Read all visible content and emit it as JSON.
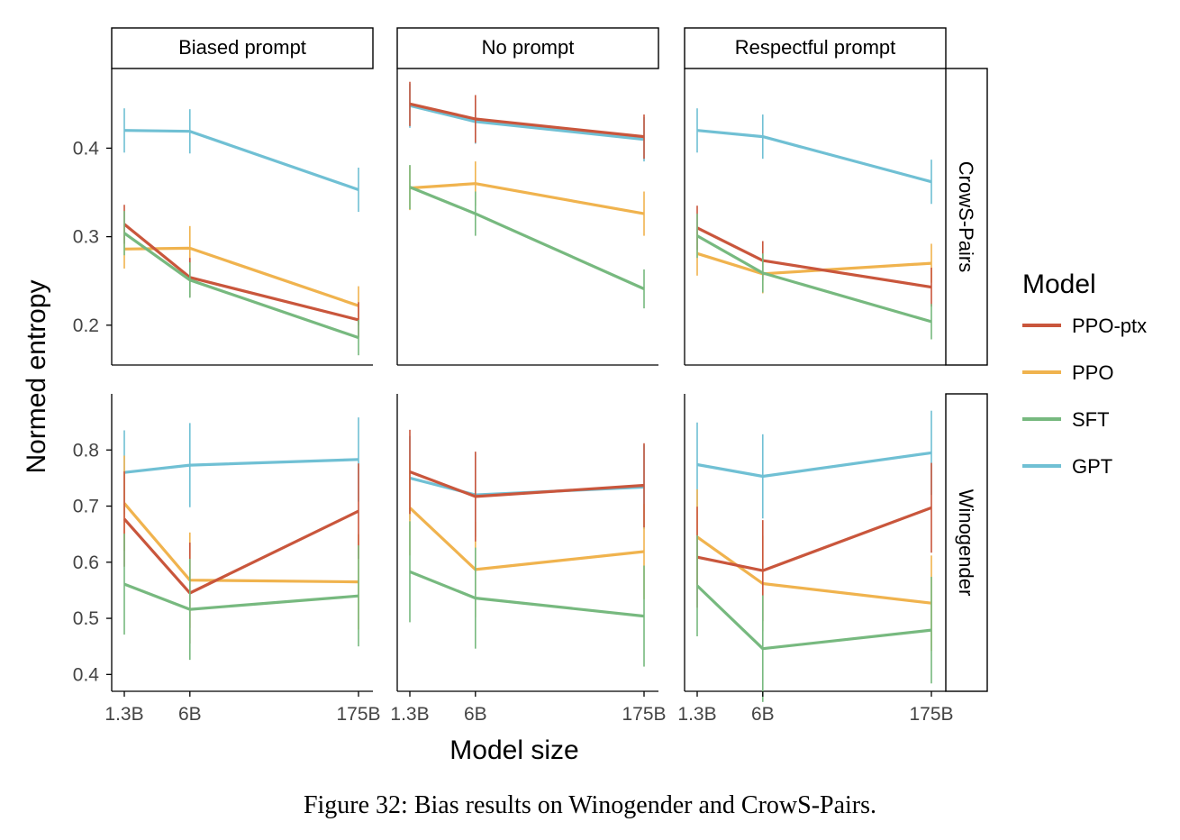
{
  "caption": "Figure 32: Bias results on Winogender and CrowS-Pairs.",
  "colors": {
    "PPO-ptx": "#c9563c",
    "PPO": "#f0b34e",
    "SFT": "#77b97f",
    "GPT": "#70c0d4"
  },
  "chart_data": {
    "type": "line",
    "facet_columns": [
      "Biased prompt",
      "No prompt",
      "Respectful prompt"
    ],
    "facet_rows": [
      "CrowS-Pairs",
      "Winogender"
    ],
    "x": [
      "1.3B",
      "6B",
      "175B"
    ],
    "xlabel": "Model size",
    "ylabel": "Normed entropy",
    "legend_title": "Model",
    "legend_position": "right",
    "grid": false,
    "rows": [
      {
        "name": "CrowS-Pairs",
        "ylim": [
          0.155,
          0.49
        ],
        "yticks": [
          0.2,
          0.3,
          0.4
        ],
        "panels": [
          {
            "column": "Biased prompt",
            "series": [
              {
                "name": "GPT",
                "values": [
                  0.42,
                  0.419,
                  0.353
                ],
                "err": [
                  0.025,
                  0.025,
                  0.025
                ]
              },
              {
                "name": "PPO",
                "values": [
                  0.286,
                  0.287,
                  0.222
                ],
                "err": [
                  0.022,
                  0.025,
                  0.022
                ]
              },
              {
                "name": "PPO-ptx",
                "values": [
                  0.314,
                  0.254,
                  0.206
                ],
                "err": [
                  0.022,
                  0.022,
                  0.02
                ]
              },
              {
                "name": "SFT",
                "values": [
                  0.304,
                  0.251,
                  0.186
                ],
                "err": [
                  0.025,
                  0.02,
                  0.02
                ]
              }
            ]
          },
          {
            "column": "No prompt",
            "series": [
              {
                "name": "GPT",
                "values": [
                  0.448,
                  0.43,
                  0.41
                ],
                "err": [
                  0.025,
                  0.025,
                  0.025
                ]
              },
              {
                "name": "PPO",
                "values": [
                  0.355,
                  0.36,
                  0.326
                ],
                "err": [
                  0.025,
                  0.025,
                  0.025
                ]
              },
              {
                "name": "PPO-ptx",
                "values": [
                  0.45,
                  0.433,
                  0.413
                ],
                "err": [
                  0.025,
                  0.027,
                  0.025
                ]
              },
              {
                "name": "SFT",
                "values": [
                  0.356,
                  0.326,
                  0.241
                ],
                "err": [
                  0.025,
                  0.025,
                  0.022
                ]
              }
            ]
          },
          {
            "column": "Respectful prompt",
            "series": [
              {
                "name": "GPT",
                "values": [
                  0.42,
                  0.413,
                  0.362
                ],
                "err": [
                  0.025,
                  0.025,
                  0.025
                ]
              },
              {
                "name": "PPO",
                "values": [
                  0.281,
                  0.258,
                  0.27
                ],
                "err": [
                  0.025,
                  0.022,
                  0.022
                ]
              },
              {
                "name": "PPO-ptx",
                "values": [
                  0.31,
                  0.273,
                  0.243
                ],
                "err": [
                  0.025,
                  0.022,
                  0.022
                ]
              },
              {
                "name": "SFT",
                "values": [
                  0.301,
                  0.259,
                  0.204
                ],
                "err": [
                  0.025,
                  0.022,
                  0.02
                ]
              }
            ]
          }
        ]
      },
      {
        "name": "Winogender",
        "ylim": [
          0.37,
          0.9
        ],
        "yticks": [
          0.4,
          0.5,
          0.6,
          0.7,
          0.8
        ],
        "panels": [
          {
            "column": "Biased prompt",
            "series": [
              {
                "name": "GPT",
                "values": [
                  0.76,
                  0.773,
                  0.783
                ],
                "err": [
                  0.075,
                  0.075,
                  0.075
                ]
              },
              {
                "name": "PPO",
                "values": [
                  0.705,
                  0.568,
                  0.565
                ],
                "err": [
                  0.085,
                  0.085,
                  0.085
                ]
              },
              {
                "name": "PPO-ptx",
                "values": [
                  0.677,
                  0.545,
                  0.691
                ],
                "err": [
                  0.085,
                  0.09,
                  0.085
                ]
              },
              {
                "name": "SFT",
                "values": [
                  0.561,
                  0.516,
                  0.54
                ],
                "err": [
                  0.09,
                  0.09,
                  0.09
                ]
              }
            ]
          },
          {
            "column": "No prompt",
            "series": [
              {
                "name": "GPT",
                "values": [
                  0.75,
                  0.72,
                  0.734
                ],
                "err": [
                  0.075,
                  0.075,
                  0.075
                ]
              },
              {
                "name": "PPO",
                "values": [
                  0.697,
                  0.587,
                  0.619
                ],
                "err": [
                  0.085,
                  0.085,
                  0.085
                ]
              },
              {
                "name": "PPO-ptx",
                "values": [
                  0.761,
                  0.717,
                  0.737
                ],
                "err": [
                  0.075,
                  0.08,
                  0.075
                ]
              },
              {
                "name": "SFT",
                "values": [
                  0.583,
                  0.536,
                  0.504
                ],
                "err": [
                  0.09,
                  0.09,
                  0.09
                ]
              }
            ]
          },
          {
            "column": "Respectful prompt",
            "series": [
              {
                "name": "GPT",
                "values": [
                  0.774,
                  0.753,
                  0.795
                ],
                "err": [
                  0.075,
                  0.075,
                  0.075
                ]
              },
              {
                "name": "PPO",
                "values": [
                  0.645,
                  0.562,
                  0.527
                ],
                "err": [
                  0.085,
                  0.085,
                  0.085
                ]
              },
              {
                "name": "PPO-ptx",
                "values": [
                  0.609,
                  0.585,
                  0.697
                ],
                "err": [
                  0.09,
                  0.09,
                  0.08
                ]
              },
              {
                "name": "SFT",
                "values": [
                  0.558,
                  0.446,
                  0.479
                ],
                "err": [
                  0.09,
                  0.095,
                  0.095
                ]
              }
            ]
          }
        ]
      }
    ],
    "legend": [
      "PPO-ptx",
      "PPO",
      "SFT",
      "GPT"
    ]
  }
}
